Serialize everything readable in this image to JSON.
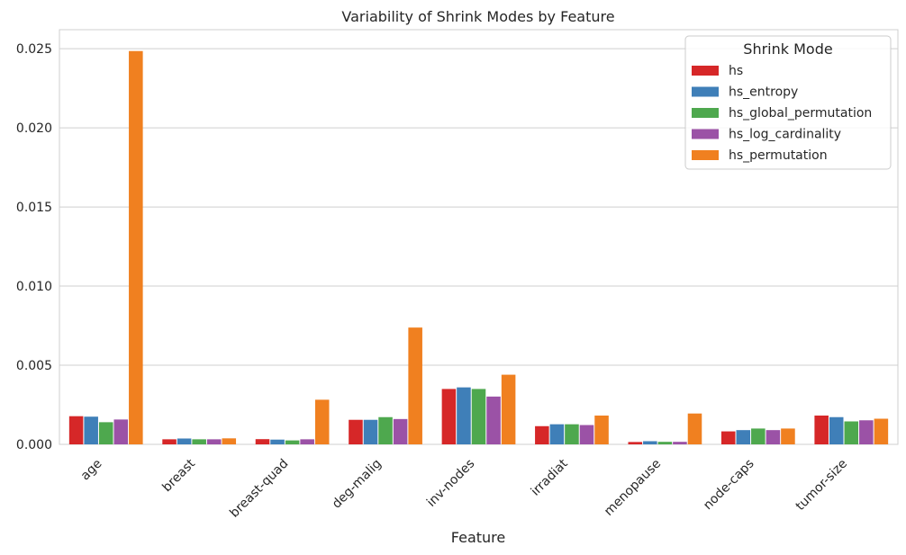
{
  "chart_data": {
    "type": "bar",
    "title": "Variability of Shrink Modes by Feature",
    "xlabel": "Feature",
    "ylabel": "",
    "ylim": [
      0,
      0.0262
    ],
    "yticks": [
      0.0,
      0.005,
      0.01,
      0.015,
      0.02,
      0.025
    ],
    "ytick_labels": [
      "0.000",
      "0.005",
      "0.010",
      "0.015",
      "0.020",
      "0.025"
    ],
    "grid": true,
    "legend_title": "Shrink Mode",
    "legend_position": "top-right",
    "categories": [
      "age",
      "breast",
      "breast-quad",
      "deg-malig",
      "inv-nodes",
      "irradiat",
      "menopause",
      "node-caps",
      "tumor-size"
    ],
    "series": [
      {
        "name": "hs",
        "color": "#d62728",
        "values": [
          0.00178,
          0.00032,
          0.00033,
          0.00155,
          0.0035,
          0.00115,
          0.00015,
          0.00082,
          0.00182
        ]
      },
      {
        "name": "hs_entropy",
        "color": "#3f7fb8",
        "values": [
          0.00175,
          0.00037,
          0.0003,
          0.00155,
          0.0036,
          0.00127,
          0.0002,
          0.0009,
          0.00172
        ]
      },
      {
        "name": "hs_global_permutation",
        "color": "#4ea84e",
        "values": [
          0.0014,
          0.00032,
          0.00025,
          0.00172,
          0.0035,
          0.00127,
          0.00016,
          0.001,
          0.00145
        ]
      },
      {
        "name": "hs_log_cardinality",
        "color": "#9b52a6",
        "values": [
          0.00157,
          0.00032,
          0.00032,
          0.0016,
          0.00302,
          0.00122,
          0.00016,
          0.0009,
          0.00152
        ]
      },
      {
        "name": "hs_permutation",
        "color": "#f08020",
        "values": [
          0.02485,
          0.00038,
          0.00282,
          0.00738,
          0.0044,
          0.00182,
          0.00195,
          0.001,
          0.00162
        ]
      }
    ]
  }
}
